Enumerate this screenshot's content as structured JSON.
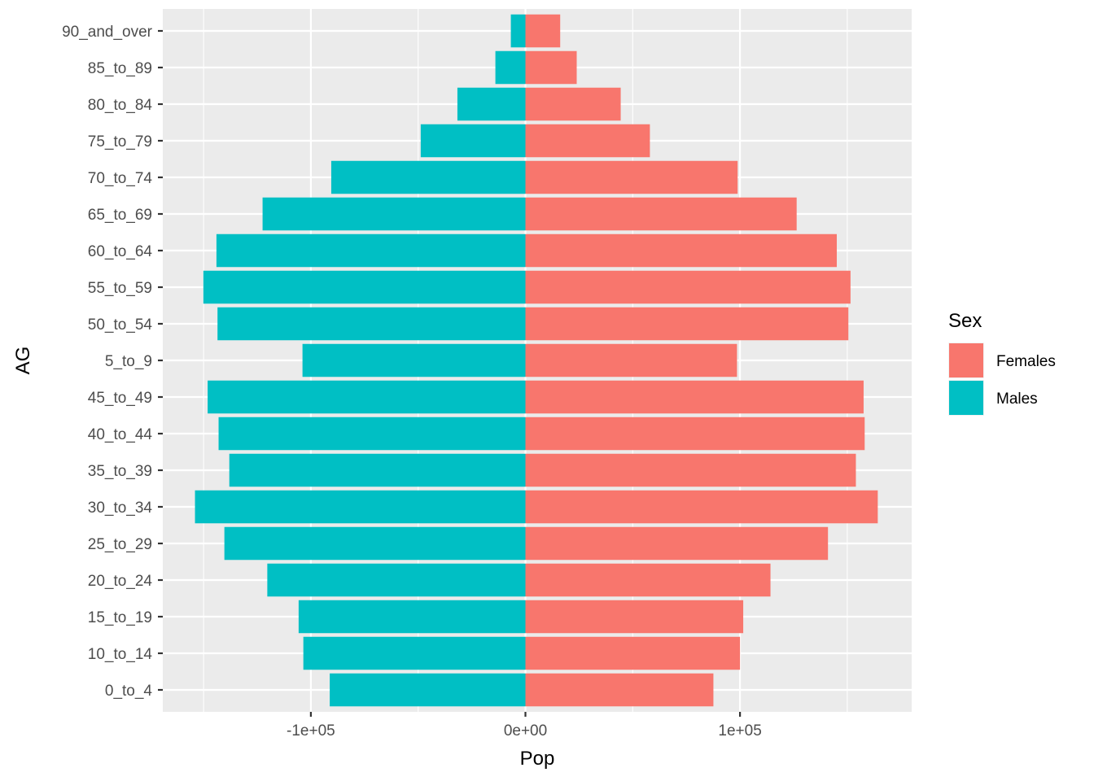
{
  "chart_data": {
    "type": "bar",
    "orientation": "horizontal",
    "layout": "population-pyramid",
    "categories": [
      "0_to_4",
      "10_to_14",
      "15_to_19",
      "20_to_24",
      "25_to_29",
      "30_to_34",
      "35_to_39",
      "40_to_44",
      "45_to_49",
      "5_to_9",
      "50_to_54",
      "55_to_59",
      "60_to_64",
      "65_to_69",
      "70_to_74",
      "75_to_79",
      "80_to_84",
      "85_to_89",
      "90_and_over"
    ],
    "series": [
      {
        "name": "Females",
        "color": "#F8766D",
        "values": [
          87600,
          100000,
          101500,
          114200,
          141000,
          164200,
          154000,
          158100,
          157600,
          98600,
          150500,
          151500,
          145100,
          126400,
          98900,
          58000,
          44400,
          23900,
          16200
        ]
      },
      {
        "name": "Males",
        "color": "#00BFC4",
        "values": [
          -91200,
          -103500,
          -105700,
          -120300,
          -140300,
          -154000,
          -138000,
          -143000,
          -148100,
          -103900,
          -143500,
          -150100,
          -144000,
          -122500,
          -90500,
          -48800,
          -31700,
          -14000,
          -6800
        ]
      }
    ],
    "xlabel": "Pop",
    "ylabel": "AG",
    "xlim": [
      -169000,
      180000
    ],
    "xticks": [
      -100000,
      0,
      100000
    ],
    "xtick_labels": [
      "-1e+05",
      "0e+00",
      "1e+05"
    ],
    "grid": true,
    "legend": {
      "title": "Sex",
      "position": "right",
      "entries": [
        "Females",
        "Males"
      ]
    }
  }
}
